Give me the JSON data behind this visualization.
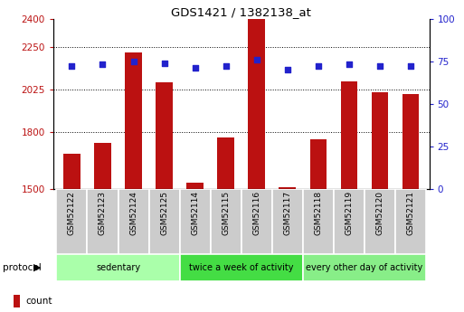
{
  "title": "GDS1421 / 1382138_at",
  "samples": [
    "GSM52122",
    "GSM52123",
    "GSM52124",
    "GSM52125",
    "GSM52114",
    "GSM52115",
    "GSM52116",
    "GSM52117",
    "GSM52118",
    "GSM52119",
    "GSM52120",
    "GSM52121"
  ],
  "counts": [
    1685,
    1745,
    2220,
    2065,
    1530,
    1770,
    2500,
    1510,
    1760,
    2070,
    2010,
    2000
  ],
  "percentiles": [
    72,
    73,
    75,
    74,
    71,
    72,
    76,
    70,
    72,
    73,
    72,
    72
  ],
  "groups": [
    {
      "label": "sedentary",
      "start": 0,
      "end": 4,
      "color": "#aaffaa"
    },
    {
      "label": "twice a week of activity",
      "start": 4,
      "end": 8,
      "color": "#44dd44"
    },
    {
      "label": "every other day of activity",
      "start": 8,
      "end": 12,
      "color": "#88ee88"
    }
  ],
  "ylim_left": [
    1500,
    2400
  ],
  "ylim_right": [
    0,
    100
  ],
  "yticks_left": [
    1500,
    1800,
    2025,
    2250,
    2400
  ],
  "yticks_right": [
    0,
    25,
    50,
    75,
    100
  ],
  "bar_color": "#bb1111",
  "dot_color": "#2222cc",
  "left_axis_color": "#bb1111",
  "right_axis_color": "#2222cc",
  "sample_box_color": "#cccccc",
  "grid_yticks": [
    1800,
    2025,
    2250
  ]
}
